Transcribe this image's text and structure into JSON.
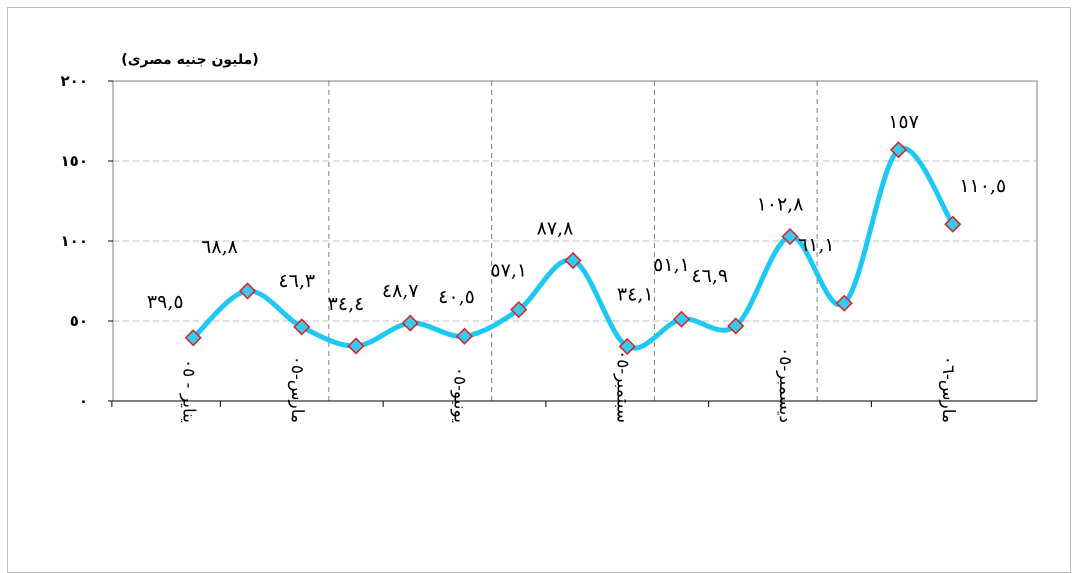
{
  "chart_data": {
    "type": "line",
    "ylabel": "(مليون جنيه مصرى)",
    "ylim": [
      0,
      200
    ],
    "yticks": [
      "٠",
      "٥٠",
      "١٠٠",
      "١٥٠",
      "٢٠٠"
    ],
    "ytick_values": [
      0,
      50,
      100,
      150,
      200
    ],
    "grid": true,
    "line_color": "#1ec8f5",
    "marker_fill": "#33ccee",
    "marker_edge": "#e02020",
    "x_tick_labels": [
      "يناير - ٠٥",
      "مارس-٠٥",
      "يونيو-٠٥",
      "سبتمبر-٠٥",
      "ديسمبر-٠٥",
      "مارس-٠٦"
    ],
    "x_tick_positions": [
      0,
      2,
      5,
      8,
      11,
      14
    ],
    "series": [
      {
        "values": [
          39.5,
          68.8,
          46.3,
          34.4,
          48.7,
          40.5,
          57.1,
          87.8,
          34.1,
          51.1,
          46.9,
          102.8,
          61.1,
          157,
          110.5
        ],
        "labels": [
          "٣٩,٥",
          "٦٨,٨",
          "٤٦,٣",
          "٣٤,٤",
          "٤٨,٧",
          "٤٠,٥",
          "٥٧,١",
          "٨٧,٨",
          "٣٤,١",
          "٥١,١",
          "٤٦,٩",
          "١٠٢,٨",
          "٦١,١",
          "١٥٧",
          "١١٠,٥"
        ]
      }
    ]
  }
}
